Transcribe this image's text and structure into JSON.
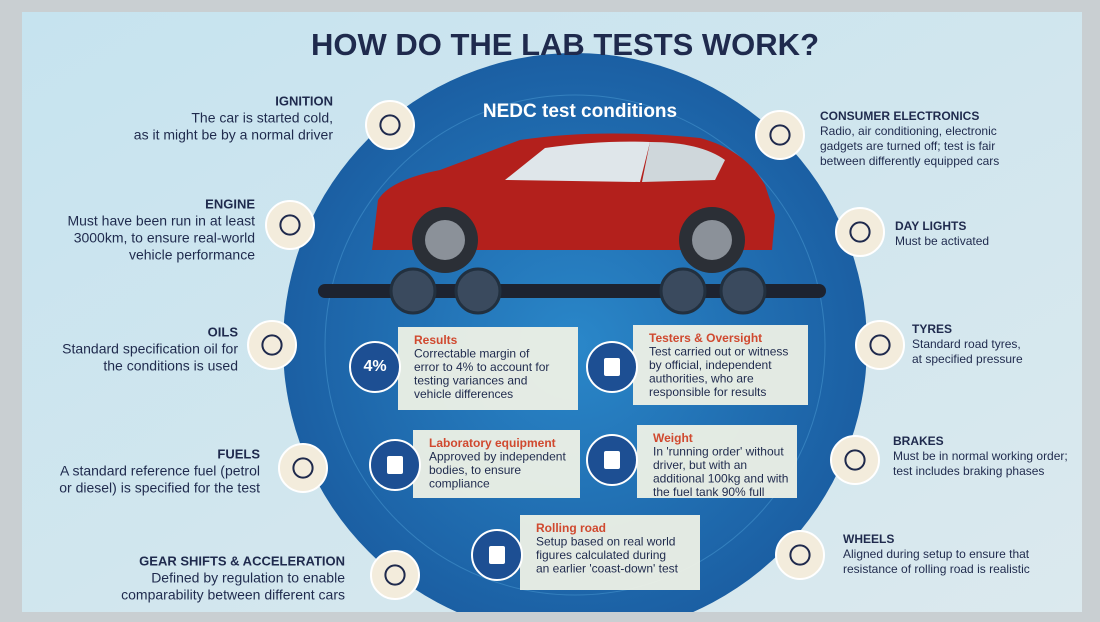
{
  "header": {
    "title": "HOW DO THE LAB TESTS WORK?",
    "subtitle": "NEDC test conditions"
  },
  "left_items": [
    {
      "title": "IGNITION",
      "lines": [
        "The car is started cold,",
        "as it might be by a normal driver"
      ]
    },
    {
      "title": "ENGINE",
      "lines": [
        "Must have been run in at least",
        "3000km, to ensure real-world",
        "vehicle performance"
      ]
    },
    {
      "title": "OILS",
      "lines": [
        "Standard specification oil for",
        "the conditions is used"
      ]
    },
    {
      "title": "FUELS",
      "lines": [
        "A standard reference fuel (petrol",
        "or diesel) is specified for the test"
      ]
    },
    {
      "title": "GEAR SHIFTS & ACCELERATION",
      "lines": [
        "Defined by regulation to enable",
        "comparability between different cars"
      ]
    }
  ],
  "right_items": [
    {
      "title": "CONSUMER ELECTRONICS",
      "lines": [
        "Radio, air conditioning, electronic",
        "gadgets are turned off; test is fair",
        "between differently equipped cars"
      ]
    },
    {
      "title": "DAY LIGHTS",
      "lines": [
        "Must be activated"
      ]
    },
    {
      "title": "TYRES",
      "lines": [
        "Standard road tyres,",
        "at specified pressure"
      ]
    },
    {
      "title": "BRAKES",
      "lines": [
        "Must be in normal working order;",
        "test includes braking phases"
      ]
    },
    {
      "title": "WHEELS",
      "lines": [
        "Aligned during setup to ensure that",
        "resistance of rolling road is realistic"
      ]
    }
  ],
  "boxes": [
    {
      "title": "Results",
      "icon_label": "4%",
      "lines": [
        "Correctable margin of",
        "error to 4% to account for",
        "testing variances and",
        "vehicle differences"
      ]
    },
    {
      "title": "Testers & Oversight",
      "lines": [
        "Test carried out or witness",
        "by official, independent",
        "authorities, who are",
        "responsible for results"
      ]
    },
    {
      "title": "Laboratory equipment",
      "lines": [
        "Approved by independent",
        "bodies, to ensure",
        "compliance"
      ]
    },
    {
      "title": "Weight",
      "lines": [
        "In 'running order' without",
        "driver, but with an",
        "additional 100kg and with",
        "the fuel tank 90% full"
      ]
    },
    {
      "title": "Rolling road",
      "lines": [
        "Setup based on real world",
        "figures calculated during",
        "an earlier 'coast-down' test"
      ]
    }
  ]
}
